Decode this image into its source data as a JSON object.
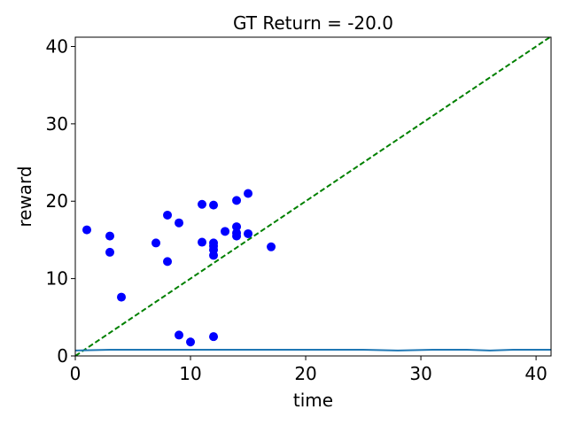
{
  "chart_data": {
    "type": "scatter",
    "title": "GT Return = -20.0",
    "xlabel": "time",
    "ylabel": "reward",
    "xlim": [
      0,
      41.3
    ],
    "ylim": [
      0,
      41.2
    ],
    "xticks": [
      0,
      10,
      20,
      30,
      40
    ],
    "yticks": [
      0,
      10,
      20,
      30,
      40
    ],
    "grid": false,
    "scatter": {
      "color": "#0000ff",
      "points": [
        [
          1,
          16.3
        ],
        [
          3,
          15.5
        ],
        [
          3,
          13.4
        ],
        [
          4,
          7.6
        ],
        [
          7,
          14.6
        ],
        [
          8,
          18.2
        ],
        [
          8,
          12.2
        ],
        [
          9,
          17.2
        ],
        [
          9,
          2.7
        ],
        [
          10,
          1.8
        ],
        [
          11,
          19.6
        ],
        [
          11,
          14.7
        ],
        [
          12,
          19.5
        ],
        [
          12,
          14.6
        ],
        [
          12,
          14.2
        ],
        [
          12,
          13.7
        ],
        [
          12,
          13.0
        ],
        [
          12,
          2.5
        ],
        [
          13,
          16.1
        ],
        [
          14,
          20.1
        ],
        [
          14,
          16.7
        ],
        [
          14,
          15.9
        ],
        [
          14,
          15.5
        ],
        [
          15,
          21.0
        ],
        [
          15,
          15.8
        ],
        [
          17,
          14.1
        ]
      ]
    },
    "line": {
      "color": "#1f77b4",
      "points": [
        [
          0,
          0.7
        ],
        [
          3,
          0.8
        ],
        [
          6,
          0.8
        ],
        [
          10,
          0.8
        ],
        [
          14,
          0.8
        ],
        [
          18,
          0.8
        ],
        [
          22,
          0.8
        ],
        [
          25,
          0.8
        ],
        [
          28,
          0.7
        ],
        [
          31,
          0.8
        ],
        [
          34,
          0.8
        ],
        [
          36,
          0.7
        ],
        [
          38,
          0.8
        ],
        [
          41.3,
          0.8
        ]
      ]
    },
    "reference_line": {
      "color": "#008000",
      "style": "dashed",
      "points": [
        [
          0,
          0
        ],
        [
          41.3,
          41.3
        ]
      ]
    }
  }
}
